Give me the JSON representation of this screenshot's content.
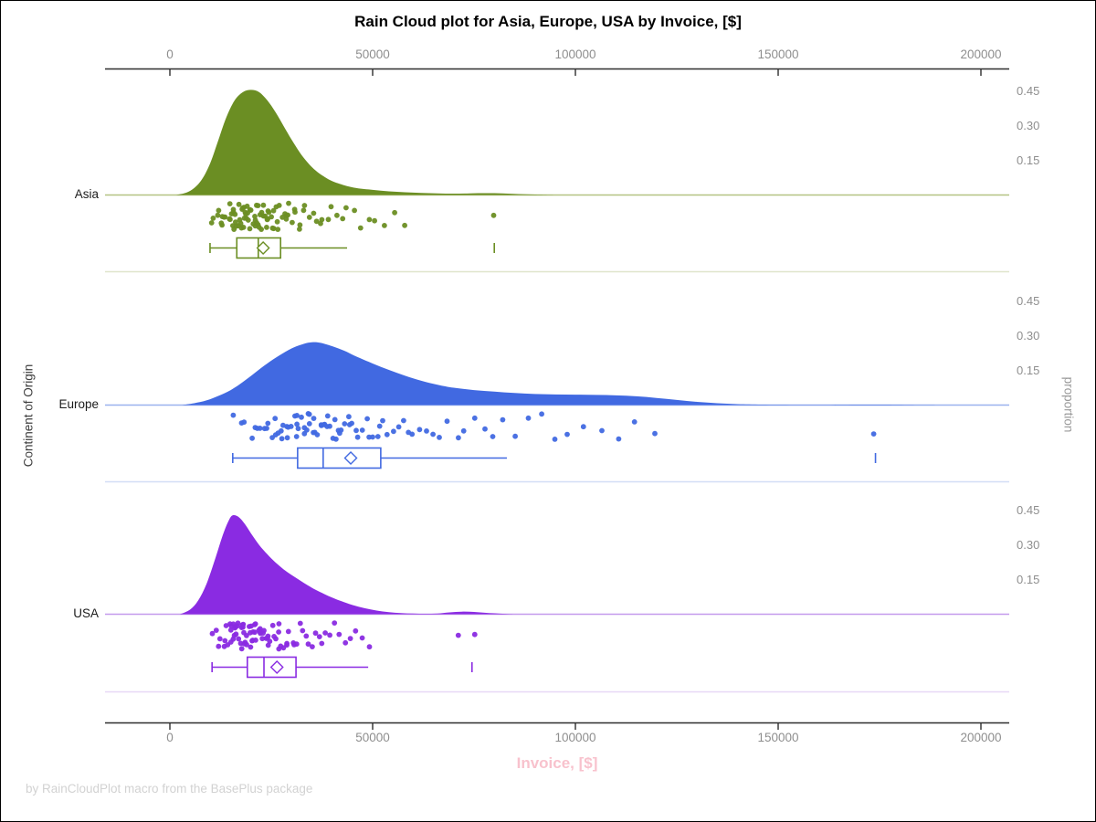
{
  "colors": {
    "title": "#000000",
    "xlabel_pink": "#f8c2cd",
    "tick_gray": "#8e8e8e",
    "footer_gray": "#d2d2d2",
    "axis_line": "#2e2e2e",
    "left_label": "#3f3f3f",
    "right_label": "#9a9a9a"
  },
  "chart_data": {
    "type": "raincloud (half-violin density + jittered strip points + box plot)",
    "title": "Rain Cloud plot for Asia, Europe, USA by Invoice, [$]",
    "xlabel": "Invoice, [$]",
    "ylabel": "Continent of Origin",
    "y2label": "proportion",
    "footnote": "by RainCloudPlot macro from the BasePlus package",
    "x_ticks": [
      0,
      50000,
      100000,
      150000,
      200000
    ],
    "x_tick_labels": [
      "0",
      "50000",
      "100000",
      "150000",
      "200000"
    ],
    "x_axis_on_top_and_bottom": true,
    "proportion_ticks": [
      "0.45",
      "0.30",
      "0.15"
    ],
    "proportion_tick_values": [
      0.45,
      0.3,
      0.15
    ],
    "grid": false,
    "groups": [
      {
        "label": "Asia",
        "color": "#6b8e23",
        "baseline_color": "#b4c383",
        "separator_color": "#dfe5cc",
        "density": [
          [
            1500,
            0
          ],
          [
            4000,
            0.01
          ],
          [
            6000,
            0.03
          ],
          [
            8000,
            0.07
          ],
          [
            10000,
            0.14
          ],
          [
            12000,
            0.24
          ],
          [
            14000,
            0.34
          ],
          [
            16000,
            0.41
          ],
          [
            18000,
            0.445
          ],
          [
            20000,
            0.455
          ],
          [
            22000,
            0.445
          ],
          [
            24000,
            0.41
          ],
          [
            26000,
            0.36
          ],
          [
            28000,
            0.3
          ],
          [
            30000,
            0.24
          ],
          [
            32000,
            0.185
          ],
          [
            34000,
            0.14
          ],
          [
            36000,
            0.105
          ],
          [
            38000,
            0.08
          ],
          [
            40000,
            0.06
          ],
          [
            43000,
            0.042
          ],
          [
            46000,
            0.03
          ],
          [
            50000,
            0.022
          ],
          [
            54000,
            0.016
          ],
          [
            58000,
            0.012
          ],
          [
            62000,
            0.009
          ],
          [
            66000,
            0.007
          ],
          [
            70000,
            0.006
          ],
          [
            74000,
            0.007
          ],
          [
            78000,
            0.008
          ],
          [
            82000,
            0.007
          ],
          [
            86000,
            0.004
          ],
          [
            90000,
            0.002
          ],
          [
            95000,
            0
          ]
        ],
        "box": {
          "whisker_low": 9900,
          "q1": 16500,
          "median": 21800,
          "mean": 23000,
          "q3": 27300,
          "whisker_high": 43700,
          "far_outlier": 80000
        },
        "points": [
          9900,
          10800,
          11500,
          12100,
          12600,
          13000,
          13400,
          13700,
          14000,
          14300,
          14600,
          14900,
          15100,
          15300,
          15500,
          15700,
          15900,
          16100,
          16300,
          16500,
          16700,
          16900,
          17100,
          17300,
          17500,
          17700,
          17900,
          18100,
          18300,
          18500,
          18700,
          18900,
          19100,
          19300,
          19500,
          19700,
          19900,
          20100,
          20300,
          20500,
          20700,
          20900,
          21100,
          21300,
          21500,
          21700,
          21900,
          22100,
          22300,
          22500,
          22700,
          22900,
          23100,
          23300,
          23600,
          23800,
          24100,
          24300,
          24600,
          24900,
          25200,
          25500,
          25800,
          26100,
          26400,
          26800,
          27100,
          27500,
          27900,
          28300,
          28700,
          29100,
          29600,
          30100,
          30600,
          31100,
          31700,
          32300,
          32900,
          33600,
          34300,
          35100,
          35900,
          36800,
          37700,
          38700,
          39800,
          41000,
          42300,
          43700,
          45200,
          46900,
          48700,
          50700,
          52900,
          55400,
          58100,
          80000
        ]
      },
      {
        "label": "Europe",
        "color": "#4169e1",
        "baseline_color": "#9ab1ee",
        "separator_color": "#d3ddf6",
        "density": [
          [
            3000,
            0
          ],
          [
            6000,
            0.008
          ],
          [
            9000,
            0.02
          ],
          [
            12000,
            0.04
          ],
          [
            15000,
            0.065
          ],
          [
            18000,
            0.1
          ],
          [
            21000,
            0.14
          ],
          [
            24000,
            0.18
          ],
          [
            27000,
            0.215
          ],
          [
            30000,
            0.245
          ],
          [
            33000,
            0.265
          ],
          [
            35000,
            0.272
          ],
          [
            37000,
            0.27
          ],
          [
            40000,
            0.255
          ],
          [
            43000,
            0.235
          ],
          [
            46000,
            0.21
          ],
          [
            50000,
            0.18
          ],
          [
            54000,
            0.152
          ],
          [
            58000,
            0.127
          ],
          [
            62000,
            0.105
          ],
          [
            66000,
            0.088
          ],
          [
            70000,
            0.075
          ],
          [
            75000,
            0.065
          ],
          [
            80000,
            0.058
          ],
          [
            85000,
            0.052
          ],
          [
            90000,
            0.048
          ],
          [
            95000,
            0.046
          ],
          [
            100000,
            0.045
          ],
          [
            105000,
            0.044
          ],
          [
            110000,
            0.042
          ],
          [
            115000,
            0.038
          ],
          [
            120000,
            0.031
          ],
          [
            125000,
            0.022
          ],
          [
            130000,
            0.014
          ],
          [
            135000,
            0.008
          ],
          [
            140000,
            0.004
          ],
          [
            146000,
            0.002
          ],
          [
            154000,
            0.001
          ],
          [
            162000,
            0.001
          ],
          [
            170000,
            0.002
          ],
          [
            176000,
            0.002
          ],
          [
            182000,
            0.001
          ],
          [
            190000,
            0
          ]
        ],
        "box": {
          "whisker_low": 15500,
          "q1": 31500,
          "median": 37800,
          "mean": 44600,
          "q3": 52000,
          "whisker_high": 83100,
          "far_outlier": 174000
        },
        "points": [
          15500,
          17200,
          18600,
          19800,
          20800,
          21700,
          22500,
          23200,
          23900,
          24500,
          25100,
          25700,
          26200,
          26700,
          27200,
          27700,
          28200,
          28700,
          29100,
          29600,
          30000,
          30400,
          30900,
          31300,
          31700,
          32100,
          32500,
          32900,
          33300,
          33700,
          34100,
          34500,
          34900,
          35300,
          35700,
          36100,
          36500,
          36900,
          37300,
          37700,
          38100,
          38600,
          39000,
          39500,
          40000,
          40500,
          41000,
          41500,
          42100,
          42700,
          43300,
          43900,
          44500,
          45200,
          45900,
          46600,
          47400,
          48200,
          49000,
          49900,
          50800,
          51800,
          52800,
          53900,
          55000,
          56200,
          57500,
          58800,
          60200,
          61700,
          63300,
          65000,
          66800,
          68700,
          70700,
          72800,
          75000,
          77300,
          79800,
          82400,
          85200,
          88200,
          91400,
          94800,
          98400,
          102200,
          106200,
          110400,
          114800,
          119400,
          174000
        ]
      },
      {
        "label": "USA",
        "color": "#8a2be2",
        "baseline_color": "#c49aec",
        "separator_color": "#e7d8f6",
        "density": [
          [
            2500,
            0
          ],
          [
            5000,
            0.02
          ],
          [
            7000,
            0.06
          ],
          [
            9000,
            0.13
          ],
          [
            11000,
            0.23
          ],
          [
            13000,
            0.34
          ],
          [
            14500,
            0.405
          ],
          [
            15500,
            0.428
          ],
          [
            17000,
            0.42
          ],
          [
            18500,
            0.39
          ],
          [
            20000,
            0.35
          ],
          [
            22000,
            0.3
          ],
          [
            24000,
            0.26
          ],
          [
            26000,
            0.225
          ],
          [
            28000,
            0.195
          ],
          [
            30000,
            0.17
          ],
          [
            32000,
            0.147
          ],
          [
            34000,
            0.125
          ],
          [
            36000,
            0.105
          ],
          [
            38000,
            0.088
          ],
          [
            40000,
            0.072
          ],
          [
            42000,
            0.058
          ],
          [
            45000,
            0.04
          ],
          [
            48000,
            0.026
          ],
          [
            51000,
            0.016
          ],
          [
            54000,
            0.009
          ],
          [
            57000,
            0.005
          ],
          [
            60000,
            0.003
          ],
          [
            63000,
            0.002
          ],
          [
            66000,
            0.003
          ],
          [
            69000,
            0.008
          ],
          [
            72000,
            0.011
          ],
          [
            75000,
            0.01
          ],
          [
            78000,
            0.006
          ],
          [
            81000,
            0.003
          ],
          [
            85000,
            0
          ]
        ],
        "box": {
          "whisker_low": 10400,
          "q1": 19100,
          "median": 23200,
          "mean": 26400,
          "q3": 31100,
          "whisker_high": 48900,
          "far_outlier": 74500
        },
        "points": [
          10400,
          11300,
          12000,
          12500,
          13000,
          13400,
          13800,
          14100,
          14400,
          14700,
          15000,
          15300,
          15500,
          15700,
          15900,
          16100,
          16300,
          16500,
          16700,
          16900,
          17100,
          17300,
          17500,
          17700,
          17900,
          18100,
          18300,
          18500,
          18700,
          18900,
          19100,
          19300,
          19500,
          19700,
          19900,
          20100,
          20300,
          20500,
          20700,
          20900,
          21100,
          21300,
          21600,
          21800,
          22100,
          22300,
          22600,
          22900,
          23200,
          23500,
          23800,
          24100,
          24400,
          24700,
          25000,
          25400,
          25700,
          26100,
          26500,
          26900,
          27300,
          27700,
          28200,
          28700,
          29200,
          29700,
          30200,
          30800,
          31400,
          32000,
          32700,
          33400,
          34100,
          34900,
          35700,
          36600,
          37500,
          38500,
          39600,
          40700,
          41900,
          43200,
          44600,
          46100,
          47700,
          48900,
          70900,
          74800
        ]
      }
    ]
  }
}
